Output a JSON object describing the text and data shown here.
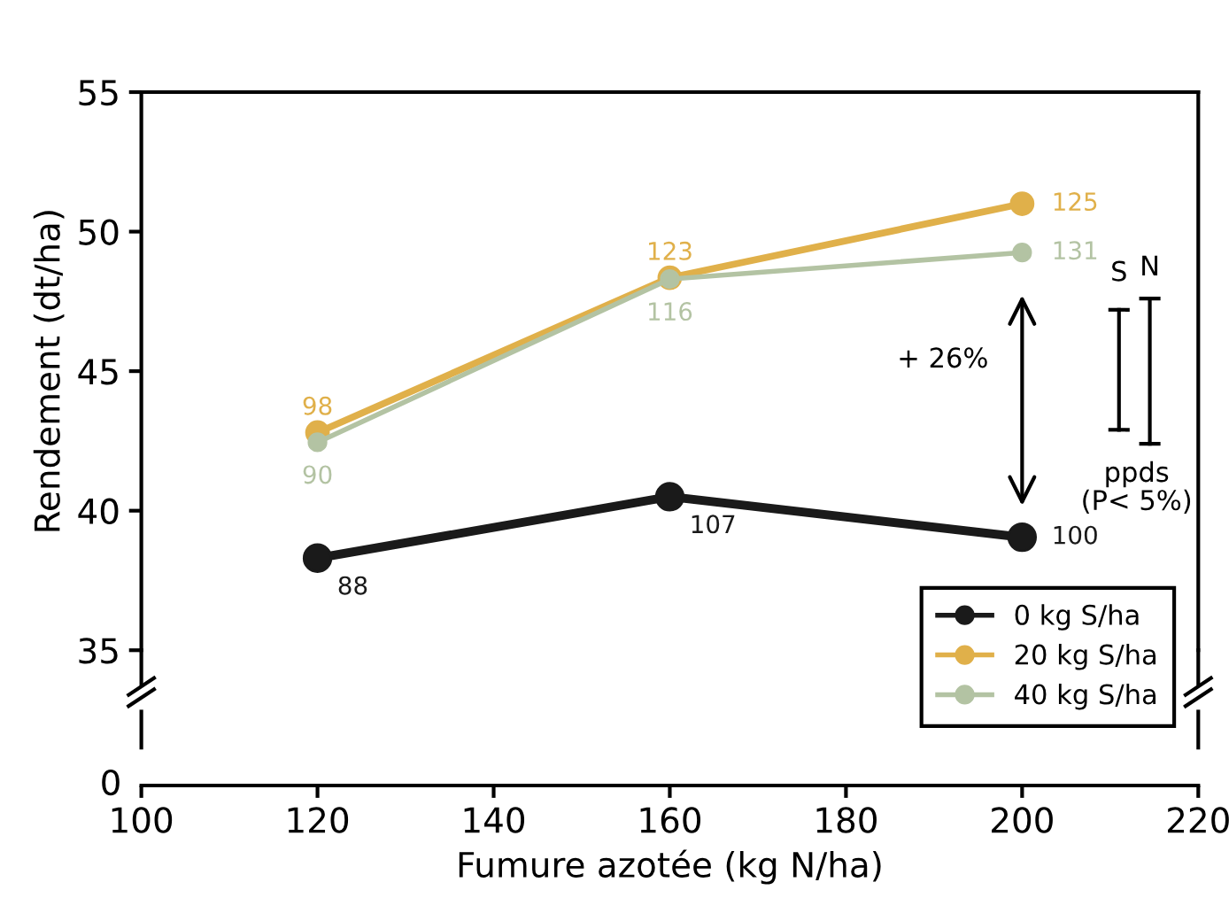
{
  "chart_data": {
    "type": "line",
    "xlabel": "Fumure azotée (kg N/ha)",
    "ylabel": "Rendement (dt/ha)",
    "x": [
      120,
      160,
      200
    ],
    "series": [
      {
        "name": "0 kg S/ha",
        "color": "#1a1a1a",
        "values": [
          38.3,
          40.5,
          39.05
        ]
      },
      {
        "name": "20 kg S/ha",
        "color": "#e0b04a",
        "values": [
          42.8,
          48.35,
          51.0
        ]
      },
      {
        "name": "40 kg S/ha",
        "color": "#b3c3a3",
        "values": [
          42.45,
          48.3,
          49.25
        ]
      }
    ],
    "xlim": [
      100,
      220
    ],
    "xticks": [
      100,
      120,
      140,
      160,
      180,
      200,
      220
    ],
    "ylim": [
      35,
      55
    ],
    "yticks": [
      35,
      40,
      45,
      50,
      55
    ],
    "annotations": [
      {
        "text": "88",
        "x": 120,
        "y": 38.3
      },
      {
        "text": "107",
        "x": 160,
        "y": 40.5
      },
      {
        "text": "100",
        "x": 200,
        "y": 39.05
      },
      {
        "text": "98",
        "x": 120,
        "y": 42.8
      },
      {
        "text": "123",
        "x": 160,
        "y": 48.35
      },
      {
        "text": "125",
        "x": 200,
        "y": 51.0
      },
      {
        "text": "90",
        "x": 120,
        "y": 42.45
      },
      {
        "text": "116",
        "x": 160,
        "y": 48.3
      },
      {
        "text": "131",
        "x": 200,
        "y": 49.25
      },
      "+ 26%",
      "S",
      "N",
      "ppds\n(P< 5%)",
      "0"
    ],
    "legend": "bottom right",
    "marker": "circle",
    "grid": false
  }
}
